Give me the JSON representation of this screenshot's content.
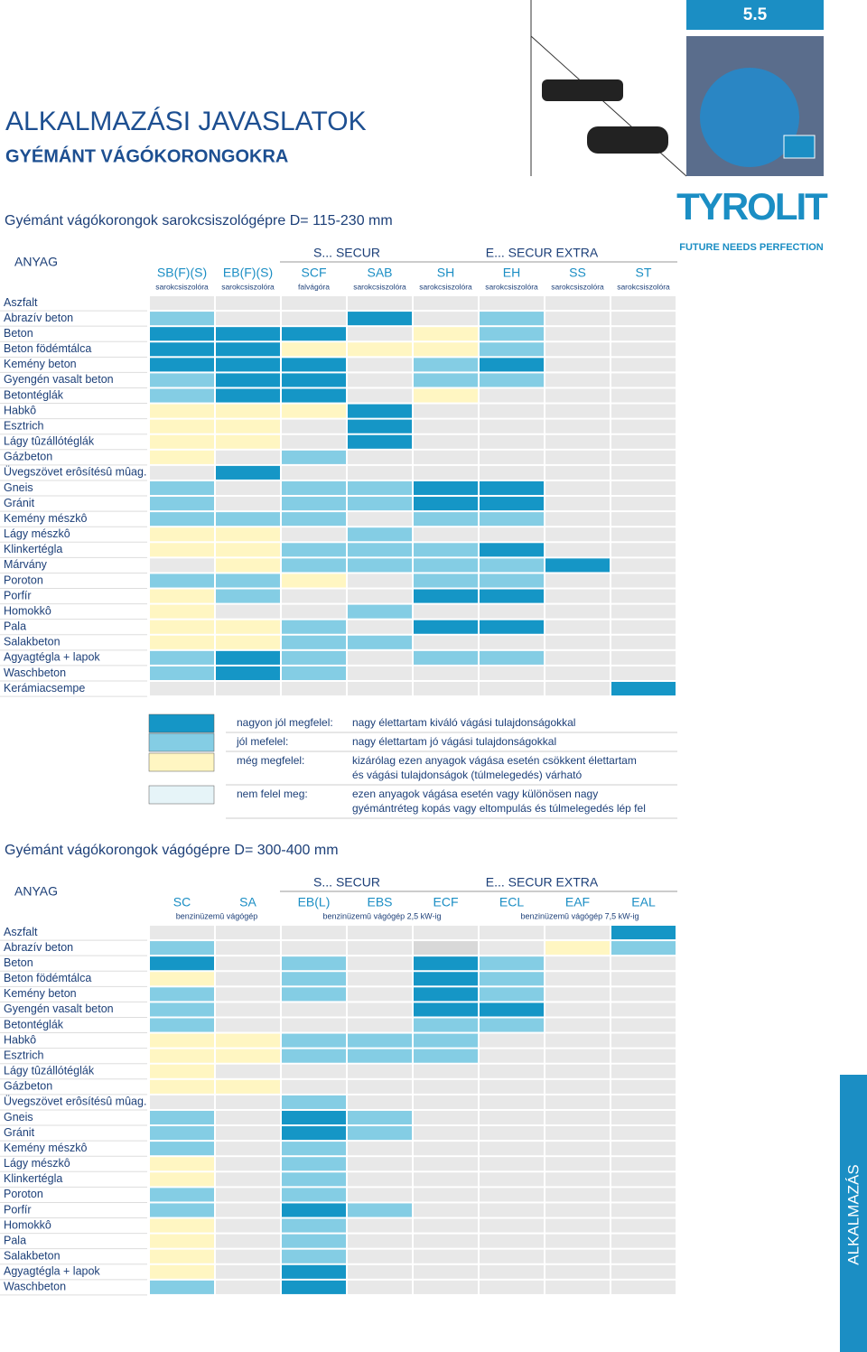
{
  "page_number": "5.5",
  "header": {
    "title": "ALKALMAZÁSI JAVASLATOK",
    "subtitle": "GYÉMÁNT VÁGÓKORONGOKRA"
  },
  "brand": {
    "logo": "TYROLIT",
    "tagline": "FUTURE NEEDS PERFECTION"
  },
  "side_tab": "ALKALMAZÁS",
  "tables": [
    {
      "title": "Gyémánt vágókorongok sarokcsiszológépre D= 115-230 mm",
      "row_header": "ANYAG",
      "groups": [
        "S... SECUR",
        "E... SECUR EXTRA"
      ],
      "columns": [
        {
          "name": "SB(F)(S)",
          "note": "sarokcsiszolóra"
        },
        {
          "name": "EB(F)(S)",
          "note": "sarokcsiszolóra"
        },
        {
          "name": "SCF",
          "note": "falvágóra"
        },
        {
          "name": "SAB",
          "note": "sarokcsiszolóra"
        },
        {
          "name": "SH",
          "note": "sarokcsiszolóra"
        },
        {
          "name": "EH",
          "note": "sarokcsiszolóra"
        },
        {
          "name": "SS",
          "note": "sarokcsiszolóra"
        },
        {
          "name": "ST",
          "note": "sarokcsiszolóra"
        }
      ],
      "rows": [
        {
          "label": "Aszfalt",
          "cells": [
            "#e8e8e8",
            "#e8e8e8",
            "#e8e8e8",
            "#e8e8e8",
            "#e8e8e8",
            "#e8e8e8",
            "#e8e8e8",
            "#e8e8e8"
          ]
        },
        {
          "label": "Abrazív beton",
          "cells": [
            "#84cde4",
            "#e8e8e8",
            "#e8e8e8",
            "#1596c6",
            "#e8e8e8",
            "#84cde4",
            "#e8e8e8",
            "#e8e8e8"
          ]
        },
        {
          "label": "Beton",
          "cells": [
            "#1596c6",
            "#1596c6",
            "#1596c6",
            "#e8e8e8",
            "#fff6c2",
            "#84cde4",
            "#e8e8e8",
            "#e8e8e8"
          ]
        },
        {
          "label": "Beton födémtálca",
          "cells": [
            "#1596c6",
            "#1596c6",
            "#fff6c2",
            "#fff6c2",
            "#fff6c2",
            "#84cde4",
            "#e8e8e8",
            "#e8e8e8"
          ]
        },
        {
          "label": "Kemény beton",
          "cells": [
            "#1596c6",
            "#1596c6",
            "#1596c6",
            "#e8e8e8",
            "#84cde4",
            "#1596c6",
            "#e8e8e8",
            "#e8e8e8"
          ]
        },
        {
          "label": "Gyengén vasalt beton",
          "cells": [
            "#84cde4",
            "#1596c6",
            "#1596c6",
            "#e8e8e8",
            "#84cde4",
            "#84cde4",
            "#e8e8e8",
            "#e8e8e8"
          ]
        },
        {
          "label": "Betontéglák",
          "cells": [
            "#84cde4",
            "#1596c6",
            "#1596c6",
            "#e8e8e8",
            "#fff6c2",
            "#e8e8e8",
            "#e8e8e8",
            "#e8e8e8"
          ]
        },
        {
          "label": "Habkô",
          "cells": [
            "#fff6c2",
            "#fff6c2",
            "#fff6c2",
            "#1596c6",
            "#e8e8e8",
            "#e8e8e8",
            "#e8e8e8",
            "#e8e8e8"
          ]
        },
        {
          "label": "Esztrich",
          "cells": [
            "#fff6c2",
            "#fff6c2",
            "#e8e8e8",
            "#1596c6",
            "#e8e8e8",
            "#e8e8e8",
            "#e8e8e8",
            "#e8e8e8"
          ]
        },
        {
          "label": "Lágy tûzállótéglák",
          "cells": [
            "#fff6c2",
            "#fff6c2",
            "#e8e8e8",
            "#1596c6",
            "#e8e8e8",
            "#e8e8e8",
            "#e8e8e8",
            "#e8e8e8"
          ]
        },
        {
          "label": "Gázbeton",
          "cells": [
            "#fff6c2",
            "#e8e8e8",
            "#84cde4",
            "#e8e8e8",
            "#e8e8e8",
            "#e8e8e8",
            "#e8e8e8",
            "#e8e8e8"
          ]
        },
        {
          "label": "Üvegszövet erôsítésû mûag.",
          "cells": [
            "#e8e8e8",
            "#1596c6",
            "#e8e8e8",
            "#e8e8e8",
            "#e8e8e8",
            "#e8e8e8",
            "#e8e8e8",
            "#e8e8e8"
          ]
        },
        {
          "label": "Gneis",
          "cells": [
            "#84cde4",
            "#e8e8e8",
            "#84cde4",
            "#84cde4",
            "#1596c6",
            "#1596c6",
            "#e8e8e8",
            "#e8e8e8"
          ]
        },
        {
          "label": "Gránit",
          "cells": [
            "#84cde4",
            "#e8e8e8",
            "#84cde4",
            "#84cde4",
            "#1596c6",
            "#1596c6",
            "#e8e8e8",
            "#e8e8e8"
          ]
        },
        {
          "label": "Kemény mészkô",
          "cells": [
            "#84cde4",
            "#84cde4",
            "#84cde4",
            "#e8e8e8",
            "#84cde4",
            "#84cde4",
            "#e8e8e8",
            "#e8e8e8"
          ]
        },
        {
          "label": "Lágy mészkô",
          "cells": [
            "#fff6c2",
            "#fff6c2",
            "#e8e8e8",
            "#84cde4",
            "#e8e8e8",
            "#e8e8e8",
            "#e8e8e8",
            "#e8e8e8"
          ]
        },
        {
          "label": "Klinkertégla",
          "cells": [
            "#fff6c2",
            "#fff6c2",
            "#84cde4",
            "#84cde4",
            "#84cde4",
            "#1596c6",
            "#e8e8e8",
            "#e8e8e8"
          ]
        },
        {
          "label": "Márvány",
          "cells": [
            "#e8e8e8",
            "#fff6c2",
            "#84cde4",
            "#84cde4",
            "#84cde4",
            "#84cde4",
            "#1596c6",
            "#e8e8e8"
          ]
        },
        {
          "label": "Poroton",
          "cells": [
            "#84cde4",
            "#84cde4",
            "#fff6c2",
            "#e8e8e8",
            "#84cde4",
            "#84cde4",
            "#e8e8e8",
            "#e8e8e8"
          ]
        },
        {
          "label": "Porfír",
          "cells": [
            "#fff6c2",
            "#84cde4",
            "#e8e8e8",
            "#e8e8e8",
            "#1596c6",
            "#1596c6",
            "#e8e8e8",
            "#e8e8e8"
          ]
        },
        {
          "label": "Homokkô",
          "cells": [
            "#fff6c2",
            "#e8e8e8",
            "#e8e8e8",
            "#84cde4",
            "#e8e8e8",
            "#e8e8e8",
            "#e8e8e8",
            "#e8e8e8"
          ]
        },
        {
          "label": "Pala",
          "cells": [
            "#fff6c2",
            "#fff6c2",
            "#84cde4",
            "#e8e8e8",
            "#1596c6",
            "#1596c6",
            "#e8e8e8",
            "#e8e8e8"
          ]
        },
        {
          "label": "Salakbeton",
          "cells": [
            "#fff6c2",
            "#fff6c2",
            "#84cde4",
            "#84cde4",
            "#e8e8e8",
            "#e8e8e8",
            "#e8e8e8",
            "#e8e8e8"
          ]
        },
        {
          "label": "Agyagtégla + lapok",
          "cells": [
            "#84cde4",
            "#1596c6",
            "#84cde4",
            "#e8e8e8",
            "#84cde4",
            "#84cde4",
            "#e8e8e8",
            "#e8e8e8"
          ]
        },
        {
          "label": "Waschbeton",
          "cells": [
            "#84cde4",
            "#1596c6",
            "#84cde4",
            "#e8e8e8",
            "#e8e8e8",
            "#e8e8e8",
            "#e8e8e8",
            "#e8e8e8"
          ]
        },
        {
          "label": "Kerámiacsempe",
          "cells": [
            "#e8e8e8",
            "#e8e8e8",
            "#e8e8e8",
            "#e8e8e8",
            "#e8e8e8",
            "#e8e8e8",
            "#e8e8e8",
            "#1596c6"
          ]
        }
      ]
    },
    {
      "title": "Gyémánt vágókorongok vágógépre D= 300-400 mm",
      "row_header": "ANYAG",
      "groups": [
        "S... SECUR",
        "E... SECUR EXTRA"
      ],
      "columns": [
        {
          "name": "SC"
        },
        {
          "name": "SA"
        },
        {
          "name": "EB(L)"
        },
        {
          "name": "EBS"
        },
        {
          "name": "ECF"
        },
        {
          "name": "ECL"
        },
        {
          "name": "EAF"
        },
        {
          "name": "EAL"
        }
      ],
      "notes": [
        "benzinüzemû vágógép",
        "benzinüzemû vágógép  2,5 kW-ig",
        "benzinüzemû vágógép 7,5 kW-ig"
      ],
      "rows": [
        {
          "label": "Aszfalt",
          "cells": [
            "#e8e8e8",
            "#e8e8e8",
            "#e8e8e8",
            "#e8e8e8",
            "#e8e8e8",
            "#e8e8e8",
            "#e8e8e8",
            "#1596c6"
          ]
        },
        {
          "label": "Abrazív beton",
          "cells": [
            "#84cde4",
            "#e8e8e8",
            "#e8e8e8",
            "#e8e8e8",
            "#d8d8d8",
            "#e8e8e8",
            "#fff6c2",
            "#84cde4"
          ]
        },
        {
          "label": "Beton",
          "cells": [
            "#1596c6",
            "#e8e8e8",
            "#84cde4",
            "#e8e8e8",
            "#1596c6",
            "#84cde4",
            "#e8e8e8",
            "#e8e8e8"
          ]
        },
        {
          "label": "Beton födémtálca",
          "cells": [
            "#fff6c2",
            "#e8e8e8",
            "#84cde4",
            "#e8e8e8",
            "#1596c6",
            "#84cde4",
            "#e8e8e8",
            "#e8e8e8"
          ]
        },
        {
          "label": "Kemény beton",
          "cells": [
            "#84cde4",
            "#e8e8e8",
            "#84cde4",
            "#e8e8e8",
            "#1596c6",
            "#84cde4",
            "#e8e8e8",
            "#e8e8e8"
          ]
        },
        {
          "label": "Gyengén vasalt beton",
          "cells": [
            "#84cde4",
            "#e8e8e8",
            "#e8e8e8",
            "#e8e8e8",
            "#1596c6",
            "#1596c6",
            "#e8e8e8",
            "#e8e8e8"
          ]
        },
        {
          "label": "Betontéglák",
          "cells": [
            "#84cde4",
            "#e8e8e8",
            "#e8e8e8",
            "#e8e8e8",
            "#84cde4",
            "#84cde4",
            "#e8e8e8",
            "#e8e8e8"
          ]
        },
        {
          "label": "Habkô",
          "cells": [
            "#fff6c2",
            "#fff6c2",
            "#84cde4",
            "#84cde4",
            "#84cde4",
            "#e8e8e8",
            "#e8e8e8",
            "#e8e8e8"
          ]
        },
        {
          "label": "Esztrich",
          "cells": [
            "#fff6c2",
            "#fff6c2",
            "#84cde4",
            "#84cde4",
            "#84cde4",
            "#e8e8e8",
            "#e8e8e8",
            "#e8e8e8"
          ]
        },
        {
          "label": "Lágy tûzállótéglák",
          "cells": [
            "#fff6c2",
            "#e8e8e8",
            "#e8e8e8",
            "#e8e8e8",
            "#e8e8e8",
            "#e8e8e8",
            "#e8e8e8",
            "#e8e8e8"
          ]
        },
        {
          "label": "Gázbeton",
          "cells": [
            "#fff6c2",
            "#fff6c2",
            "#e8e8e8",
            "#e8e8e8",
            "#e8e8e8",
            "#e8e8e8",
            "#e8e8e8",
            "#e8e8e8"
          ]
        },
        {
          "label": "Üvegszövet erôsítésû mûag.",
          "cells": [
            "#e8e8e8",
            "#e8e8e8",
            "#84cde4",
            "#e8e8e8",
            "#e8e8e8",
            "#e8e8e8",
            "#e8e8e8",
            "#e8e8e8"
          ]
        },
        {
          "label": "Gneis",
          "cells": [
            "#84cde4",
            "#e8e8e8",
            "#1596c6",
            "#84cde4",
            "#e8e8e8",
            "#e8e8e8",
            "#e8e8e8",
            "#e8e8e8"
          ]
        },
        {
          "label": "Gránit",
          "cells": [
            "#84cde4",
            "#e8e8e8",
            "#1596c6",
            "#84cde4",
            "#e8e8e8",
            "#e8e8e8",
            "#e8e8e8",
            "#e8e8e8"
          ]
        },
        {
          "label": "Kemény mészkô",
          "cells": [
            "#84cde4",
            "#e8e8e8",
            "#84cde4",
            "#e8e8e8",
            "#e8e8e8",
            "#e8e8e8",
            "#e8e8e8",
            "#e8e8e8"
          ]
        },
        {
          "label": "Lágy mészkô",
          "cells": [
            "#fff6c2",
            "#e8e8e8",
            "#84cde4",
            "#e8e8e8",
            "#e8e8e8",
            "#e8e8e8",
            "#e8e8e8",
            "#e8e8e8"
          ]
        },
        {
          "label": "Klinkertégla",
          "cells": [
            "#fff6c2",
            "#e8e8e8",
            "#84cde4",
            "#e8e8e8",
            "#e8e8e8",
            "#e8e8e8",
            "#e8e8e8",
            "#e8e8e8"
          ]
        },
        {
          "label": "Poroton",
          "cells": [
            "#84cde4",
            "#e8e8e8",
            "#84cde4",
            "#e8e8e8",
            "#e8e8e8",
            "#e8e8e8",
            "#e8e8e8",
            "#e8e8e8"
          ]
        },
        {
          "label": "Porfír",
          "cells": [
            "#84cde4",
            "#e8e8e8",
            "#1596c6",
            "#84cde4",
            "#e8e8e8",
            "#e8e8e8",
            "#e8e8e8",
            "#e8e8e8"
          ]
        },
        {
          "label": "Homokkô",
          "cells": [
            "#fff6c2",
            "#e8e8e8",
            "#84cde4",
            "#e8e8e8",
            "#e8e8e8",
            "#e8e8e8",
            "#e8e8e8",
            "#e8e8e8"
          ]
        },
        {
          "label": "Pala",
          "cells": [
            "#fff6c2",
            "#e8e8e8",
            "#84cde4",
            "#e8e8e8",
            "#e8e8e8",
            "#e8e8e8",
            "#e8e8e8",
            "#e8e8e8"
          ]
        },
        {
          "label": "Salakbeton",
          "cells": [
            "#fff6c2",
            "#e8e8e8",
            "#84cde4",
            "#e8e8e8",
            "#e8e8e8",
            "#e8e8e8",
            "#e8e8e8",
            "#e8e8e8"
          ]
        },
        {
          "label": "Agyagtégla + lapok",
          "cells": [
            "#fff6c2",
            "#e8e8e8",
            "#1596c6",
            "#e8e8e8",
            "#e8e8e8",
            "#e8e8e8",
            "#e8e8e8",
            "#e8e8e8"
          ]
        },
        {
          "label": "Waschbeton",
          "cells": [
            "#84cde4",
            "#e8e8e8",
            "#1596c6",
            "#e8e8e8",
            "#e8e8e8",
            "#e8e8e8",
            "#e8e8e8",
            "#e8e8e8"
          ]
        }
      ]
    }
  ],
  "legend": [
    {
      "color": "#1596c6",
      "label": "nagyon jól megfelel:",
      "text": [
        "nagy élettartam kiváló vágási tulajdonságokkal"
      ]
    },
    {
      "color": "#84cde4",
      "label": "jól mefelel:",
      "text": [
        "nagy élettartam jó vágási tulajdonságokkal"
      ]
    },
    {
      "color": "#fff6c2",
      "label": "még megfelel:",
      "text": [
        "kizárólag ezen anyagok vágása esetén csökkent élettartam",
        "és vágási tulajdonságok (túlmelegedés) várható"
      ]
    },
    {
      "color": "#e6f4f8",
      "label": "nem felel meg:",
      "text": [
        "ezen anyagok vágása esetén vagy különösen nagy",
        "gyémántréteg kopás vagy eltompulás és túlmelegedés lép fel"
      ]
    }
  ]
}
